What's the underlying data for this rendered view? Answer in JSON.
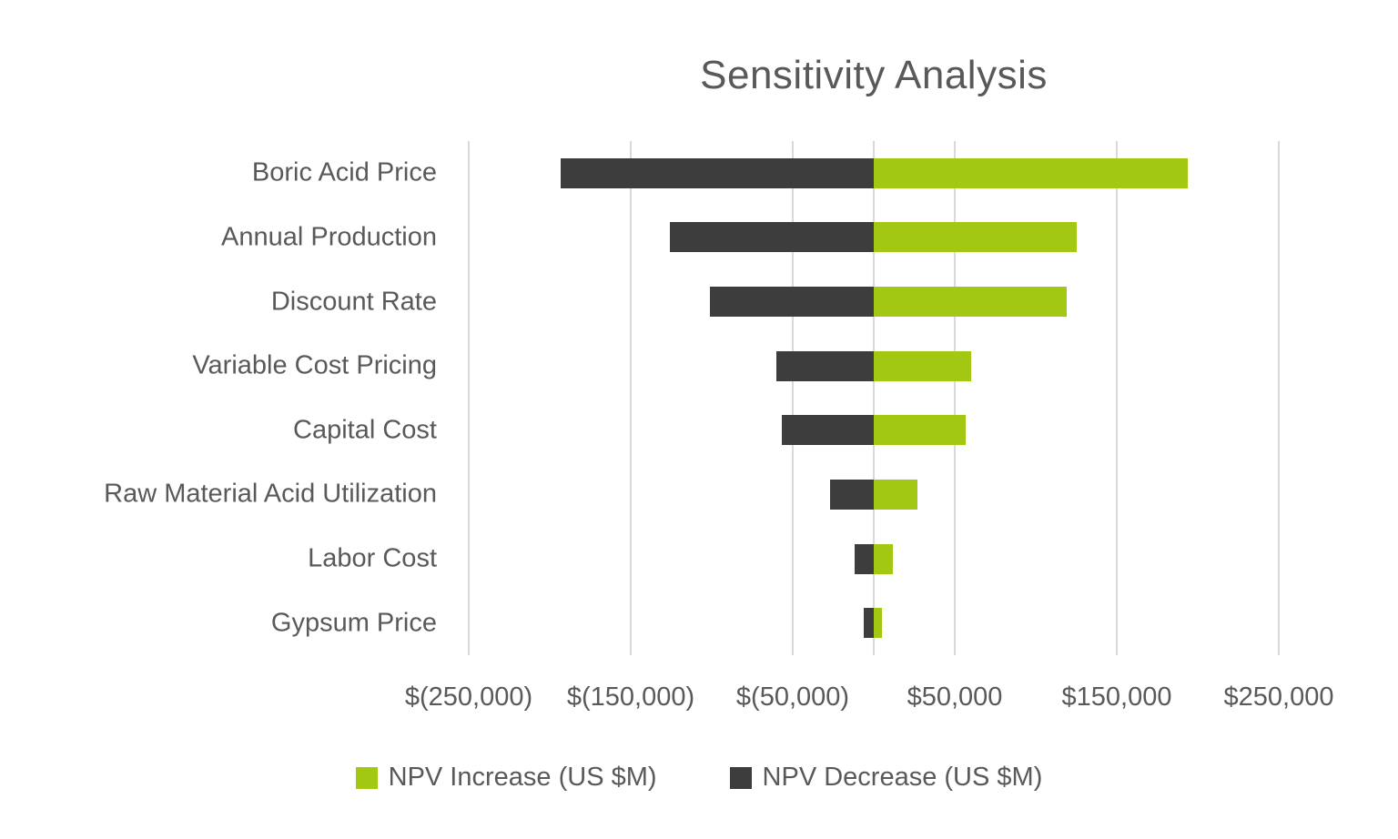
{
  "chart_data": {
    "type": "bar",
    "subtype": "tornado",
    "orientation": "horizontal",
    "title": "Sensitivity Analysis",
    "categories": [
      "Boric Acid Price",
      "Annual Production",
      "Discount Rate",
      "Variable Cost Pricing",
      "Capital Cost",
      "Raw Material Acid Utilization",
      "Labor Cost",
      "Gypsum Price"
    ],
    "series": [
      {
        "name": "NPV Increase (US $M)",
        "color": "#a3c814",
        "values": [
          194000,
          125000,
          119000,
          60000,
          57000,
          27000,
          12000,
          5000
        ]
      },
      {
        "name": "NPV Decrease (US $M)",
        "color": "#3d3d3d",
        "values": [
          -193000,
          -126000,
          -101000,
          -60000,
          -57000,
          -27000,
          -12000,
          -6000
        ]
      }
    ],
    "x_axis": {
      "min": -250000,
      "max": 250000,
      "ticks": [
        {
          "value": -250000,
          "label": "$(250,000)"
        },
        {
          "value": -150000,
          "label": "$(150,000)"
        },
        {
          "value": -50000,
          "label": "$(50,000)"
        },
        {
          "value": 50000,
          "label": "$50,000"
        },
        {
          "value": 150000,
          "label": "$150,000"
        },
        {
          "value": 250000,
          "label": "$250,000"
        }
      ]
    },
    "grid": true,
    "legend_position": "bottom",
    "colors": {
      "gridline": "#d9d9d9",
      "text": "#595959",
      "background": "#ffffff"
    }
  }
}
